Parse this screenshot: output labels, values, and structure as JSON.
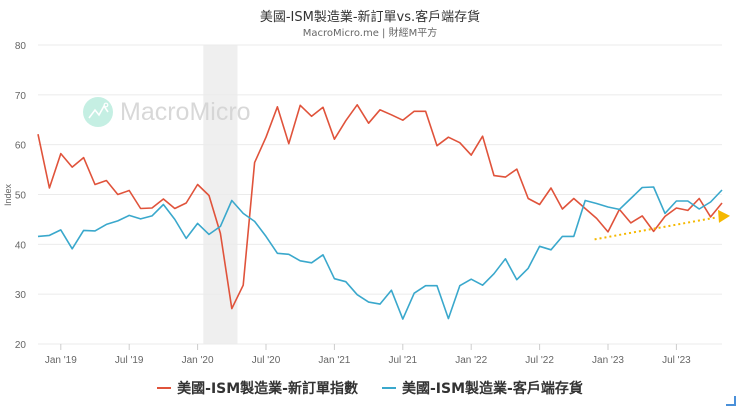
{
  "header": {
    "title": "美國-ISM製造業-新訂單vs.客戶端存貨",
    "subtitle": "MacroMicro.me | 財經M平方"
  },
  "watermark": {
    "text": "MacroMicro",
    "icon": "macromicro-logo-icon"
  },
  "colors": {
    "series_new_orders": "#e0533b",
    "series_inventories": "#3aa8cc",
    "trend_arrow": "#f5b800",
    "recession_band": "#efefef",
    "grid": "#ebebeb"
  },
  "chart_data": {
    "type": "line",
    "title": "美國-ISM製造業-新訂單vs.客戶端存貨",
    "subtitle": "MacroMicro.me | 財經M平方",
    "xlabel": "",
    "ylabel": "Index",
    "ylim": [
      20,
      80
    ],
    "yticks": [
      20,
      30,
      40,
      50,
      60,
      70,
      80
    ],
    "xtick_labels": [
      "Jan '19",
      "Jul '19",
      "Jan '20",
      "Jul '20",
      "Jan '21",
      "Jul '21",
      "Jan '22",
      "Jul '22",
      "Jan '23",
      "Jul '23"
    ],
    "grid": true,
    "legend_position": "bottom",
    "x": [
      "2018-11",
      "2018-12",
      "2019-01",
      "2019-02",
      "2019-03",
      "2019-04",
      "2019-05",
      "2019-06",
      "2019-07",
      "2019-08",
      "2019-09",
      "2019-10",
      "2019-11",
      "2019-12",
      "2020-01",
      "2020-02",
      "2020-03",
      "2020-04",
      "2020-05",
      "2020-06",
      "2020-07",
      "2020-08",
      "2020-09",
      "2020-10",
      "2020-11",
      "2020-12",
      "2021-01",
      "2021-02",
      "2021-03",
      "2021-04",
      "2021-05",
      "2021-06",
      "2021-07",
      "2021-08",
      "2021-09",
      "2021-10",
      "2021-11",
      "2021-12",
      "2022-01",
      "2022-02",
      "2022-03",
      "2022-04",
      "2022-05",
      "2022-06",
      "2022-07",
      "2022-08",
      "2022-09",
      "2022-10",
      "2022-11",
      "2022-12",
      "2023-01",
      "2023-02",
      "2023-03",
      "2023-04",
      "2023-05",
      "2023-06",
      "2023-07",
      "2023-08",
      "2023-09",
      "2023-10",
      "2023-11"
    ],
    "series": [
      {
        "name": "美國-ISM製造業-新訂單指數",
        "color": "#e0533b",
        "values": [
          62.1,
          51.3,
          58.2,
          55.5,
          57.4,
          52.0,
          52.8,
          50.0,
          50.8,
          47.2,
          47.3,
          49.1,
          47.2,
          48.3,
          52.0,
          49.8,
          42.2,
          27.1,
          31.8,
          56.4,
          61.5,
          67.6,
          60.2,
          67.9,
          65.7,
          67.5,
          61.1,
          64.8,
          68.0,
          64.3,
          67.0,
          66.0,
          64.9,
          66.7,
          66.7,
          59.8,
          61.5,
          60.4,
          57.9,
          61.7,
          53.8,
          53.5,
          55.1,
          49.2,
          48.0,
          51.3,
          47.1,
          49.2,
          47.2,
          45.2,
          42.5,
          47.0,
          44.3,
          45.7,
          42.6,
          45.6,
          47.3,
          46.8,
          49.2,
          45.5,
          48.3
        ]
      },
      {
        "name": "美國-ISM製造業-客戶端存貨",
        "color": "#3aa8cc",
        "values": [
          41.6,
          41.8,
          42.9,
          39.1,
          42.8,
          42.7,
          44.0,
          44.7,
          45.8,
          45.1,
          45.7,
          48.0,
          45.0,
          41.2,
          44.2,
          42.0,
          43.6,
          48.8,
          46.2,
          44.6,
          41.6,
          38.2,
          38.0,
          36.7,
          36.3,
          37.9,
          33.1,
          32.5,
          29.9,
          28.4,
          28.0,
          30.8,
          25.0,
          30.2,
          31.7,
          31.7,
          25.1,
          31.7,
          33.0,
          31.8,
          34.1,
          37.1,
          32.9,
          35.2,
          39.6,
          38.9,
          41.6,
          41.6,
          48.8,
          48.2,
          47.5,
          47.0,
          49.2,
          51.4,
          51.5,
          46.2,
          48.7,
          48.7,
          47.1,
          48.5,
          50.9
        ]
      }
    ],
    "annotations": [
      {
        "type": "shaded_band",
        "label": "recession",
        "x_start": "2020-02",
        "x_end": "2020-04"
      },
      {
        "type": "dotted_arrow",
        "color": "#f5b800",
        "from": [
          "2022-12",
          41.0
        ],
        "to": [
          "2023-11",
          45.5
        ]
      }
    ]
  },
  "legend": {
    "items": [
      {
        "label": "美國-ISM製造業-新訂單指數",
        "color": "#e0533b"
      },
      {
        "label": "美國-ISM製造業-客戶端存貨",
        "color": "#3aa8cc"
      }
    ]
  }
}
